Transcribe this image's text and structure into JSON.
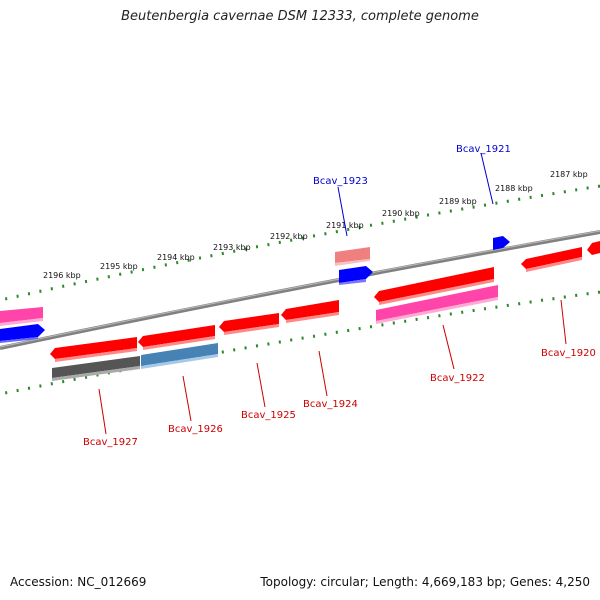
{
  "title": "Beutenbergia cavernae DSM 12333, complete genome",
  "footer": {
    "accession": "Accession: NC_012669",
    "summary": "Topology: circular; Length: 4,669,183 bp; Genes: 4,250"
  },
  "colors": {
    "gene_red": "#ff0000",
    "gene_pink": "#ff44aa",
    "gene_light_red": "#f08080",
    "gene_blue": "#0000ff",
    "gene_steelblue": "#4682b4",
    "gene_gray": "#555555",
    "backbone": "#808080",
    "ticks": "#2a8a2a",
    "label_red": "#cc0000",
    "label_blue": "#0000cc"
  },
  "scale_labels": [
    "2196 kbp",
    "2195 kbp",
    "2194 kbp",
    "2193 kbp",
    "2192 kbp",
    "2191 kbp",
    "2190 kbp",
    "2189 kbp",
    "2188 kbp",
    "2187 kbp"
  ],
  "gene_labels": {
    "bcav_1927": "Bcav_1927",
    "bcav_1926": "Bcav_1926",
    "bcav_1925": "Bcav_1925",
    "bcav_1924": "Bcav_1924",
    "bcav_1923": "Bcav_1923",
    "bcav_1922": "Bcav_1922",
    "bcav_1921": "Bcav_1921",
    "bcav_1920": "Bcav_1920"
  }
}
